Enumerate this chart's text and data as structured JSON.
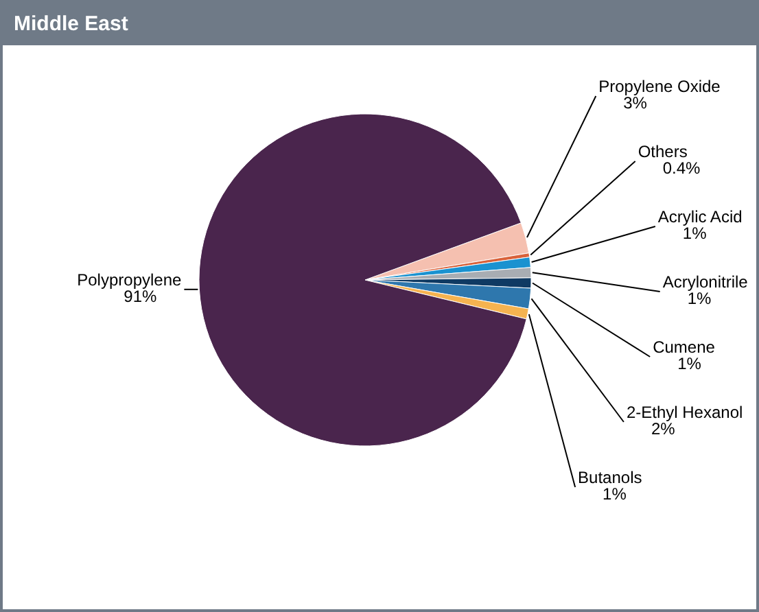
{
  "chart_data": {
    "type": "pie",
    "title": "Middle East",
    "categories": [
      "Propylene Oxide",
      "Others",
      "Acrylic Acid",
      "Acrylonitrile",
      "Cumene",
      "2-Ethyl Hexanol",
      "Butanols",
      "Polypropylene"
    ],
    "values": [
      3,
      0.4,
      1,
      1,
      1,
      2,
      1,
      91
    ],
    "value_labels": [
      "3%",
      "0.4%",
      "1%",
      "1%",
      "1%",
      "2%",
      "1%",
      "91%"
    ],
    "colors": [
      "#f5c0b0",
      "#d9623b",
      "#1a92d0",
      "#a8adb3",
      "#0f3a63",
      "#2e77ad",
      "#f5b350",
      "#4a254d"
    ]
  }
}
